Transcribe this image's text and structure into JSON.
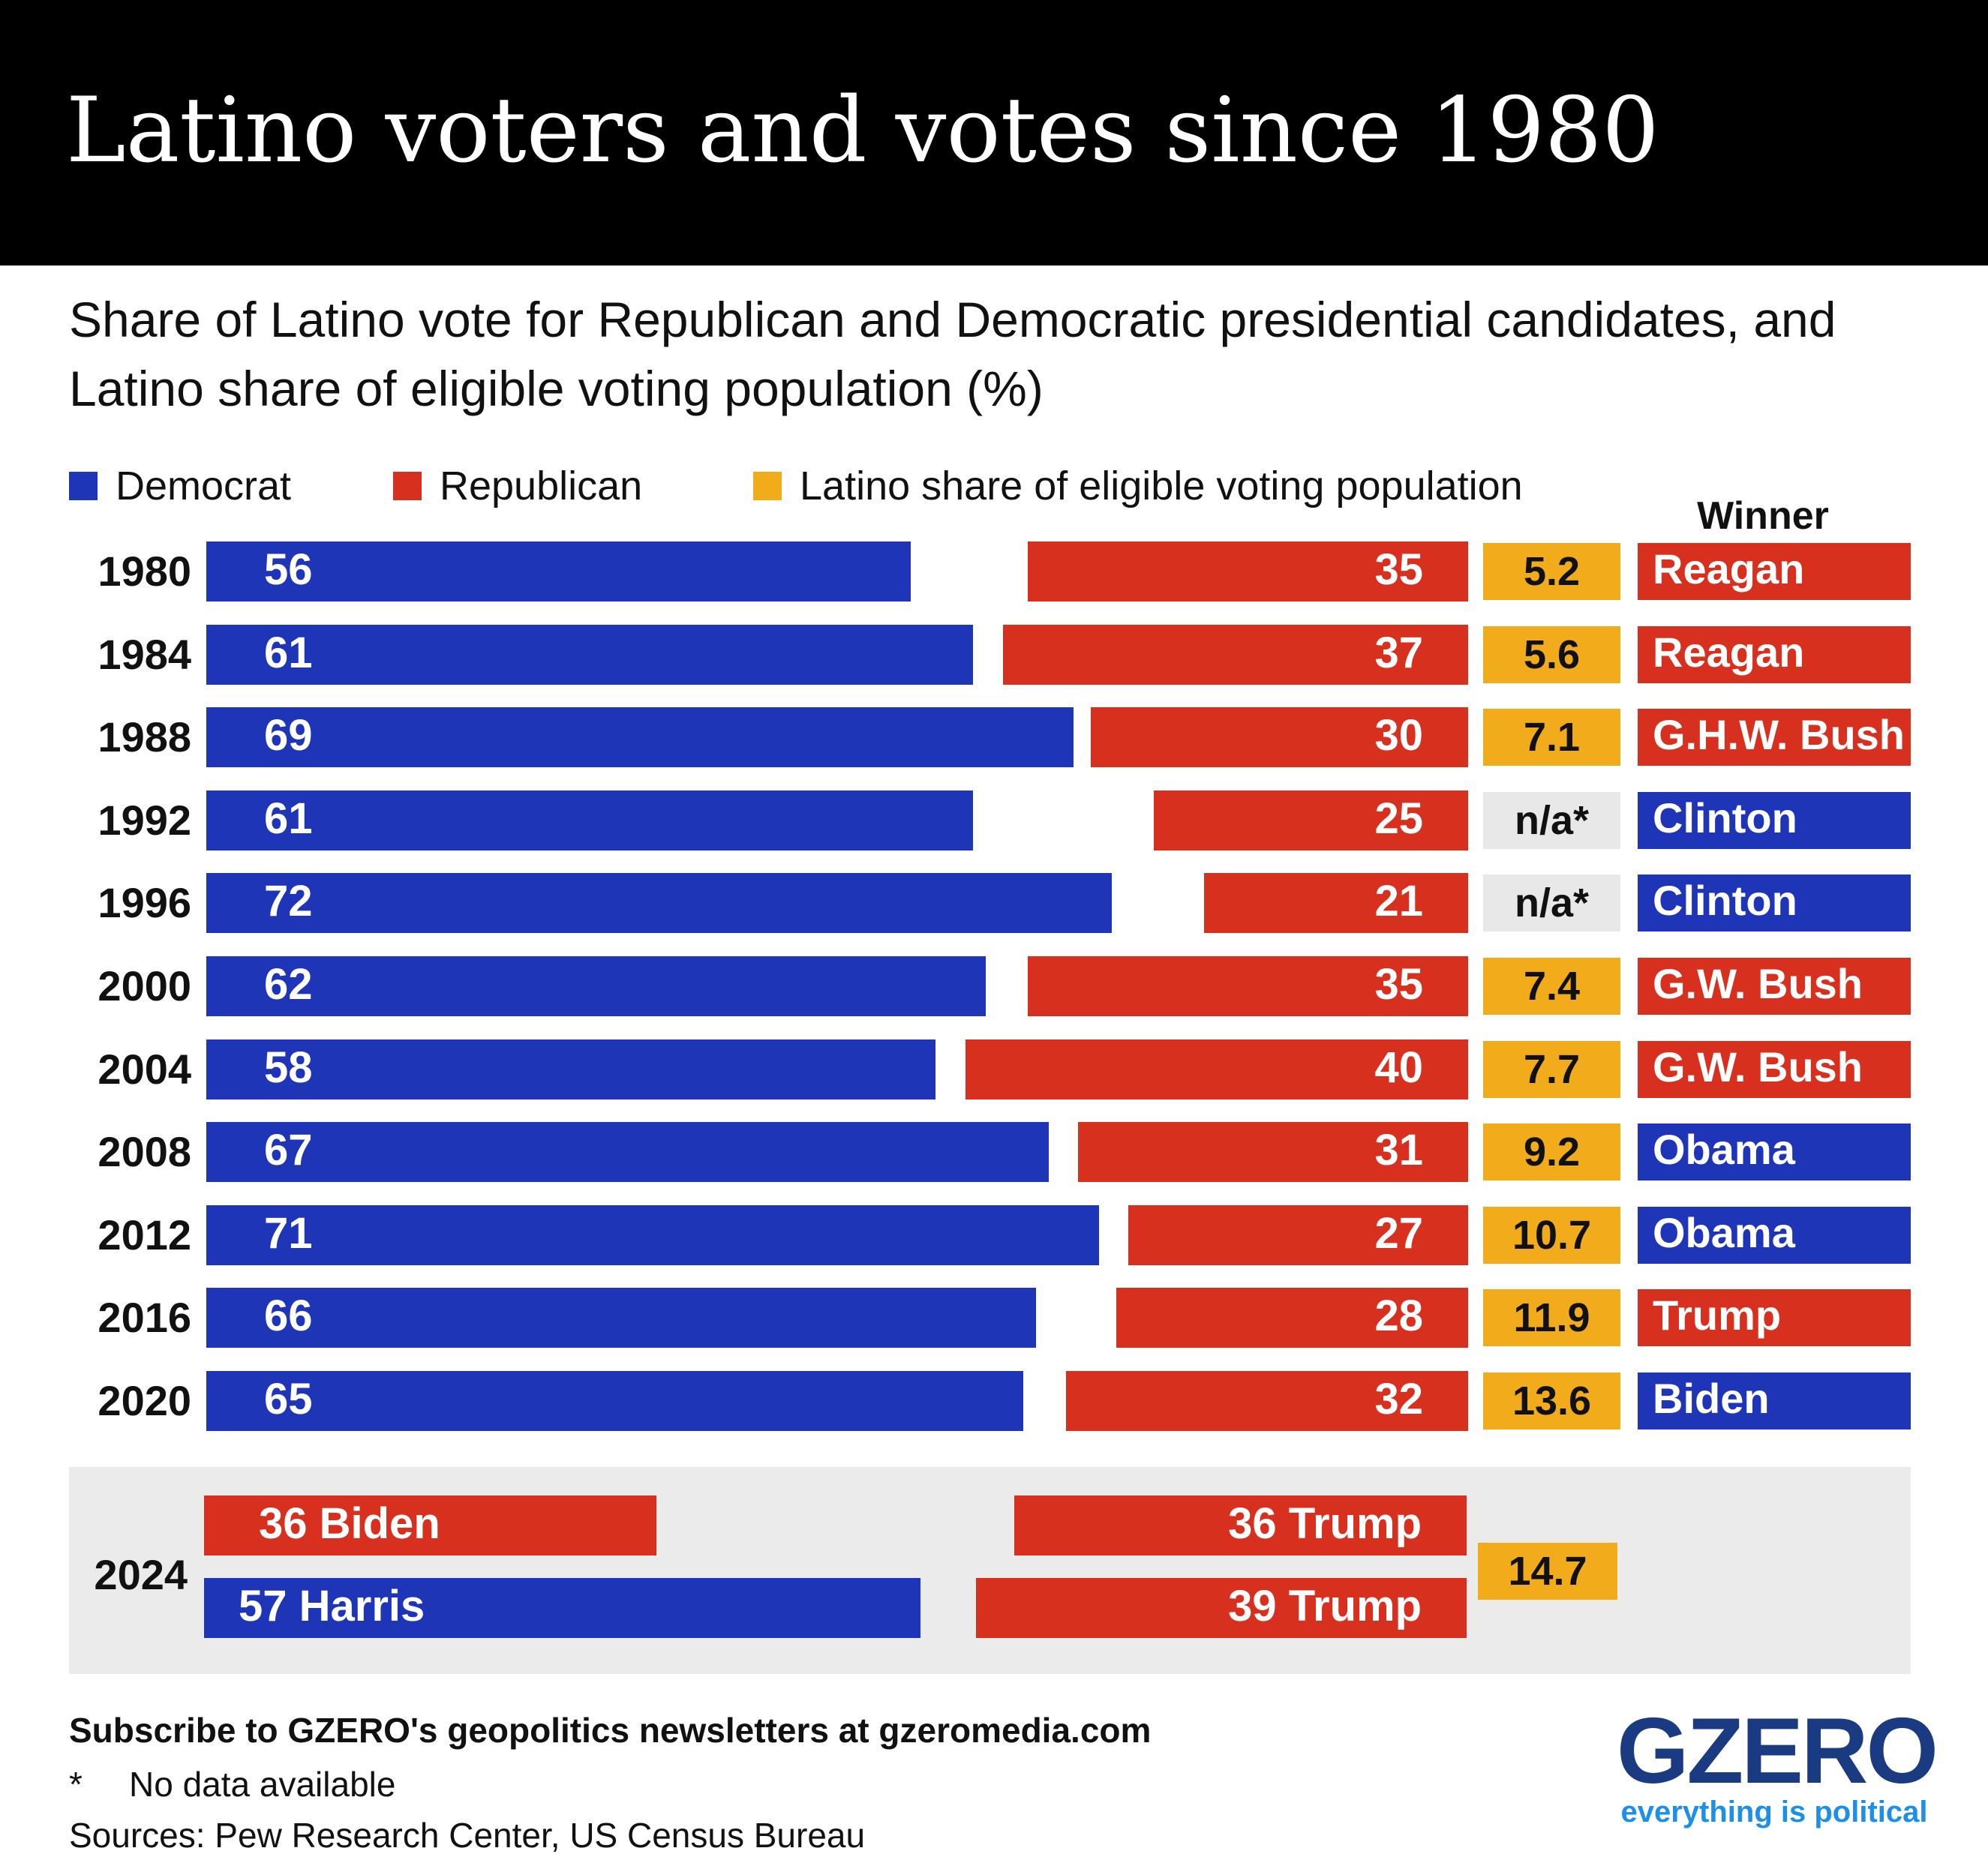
{
  "chart_data": {
    "type": "bar",
    "title": "Latino voters and votes since 1980",
    "subtitle": "Share of Latino vote for Republican and Democratic presidential candidates, and Latino share of eligible voting population (%)",
    "legend": [
      {
        "name": "Democrat",
        "color": "#1f35b8"
      },
      {
        "name": "Republican",
        "color": "#d7301e"
      },
      {
        "name": "Latino share of eligible voting population",
        "color": "#f2ac1b"
      }
    ],
    "winner_header": "Winner",
    "categories": [
      "1980",
      "1984",
      "1988",
      "1992",
      "1996",
      "2000",
      "2004",
      "2008",
      "2012",
      "2016",
      "2020"
    ],
    "series": [
      {
        "name": "Democrat",
        "values": [
          56,
          61,
          69,
          61,
          72,
          62,
          58,
          67,
          71,
          66,
          65
        ]
      },
      {
        "name": "Republican",
        "values": [
          35,
          37,
          30,
          25,
          21,
          35,
          40,
          31,
          27,
          28,
          32
        ]
      },
      {
        "name": "Latino share of eligible voting population",
        "values": [
          5.2,
          5.6,
          7.1,
          null,
          null,
          7.4,
          7.7,
          9.2,
          10.7,
          11.9,
          13.6
        ]
      }
    ],
    "share_labels": [
      "5.2",
      "5.6",
      "7.1",
      "n/a*",
      "n/a*",
      "7.4",
      "7.7",
      "9.2",
      "10.7",
      "11.9",
      "13.6"
    ],
    "winners": [
      {
        "name": "Reagan",
        "party": "Republican"
      },
      {
        "name": "Reagan",
        "party": "Republican"
      },
      {
        "name": "G.H.W. Bush",
        "party": "Republican"
      },
      {
        "name": "Clinton",
        "party": "Democrat"
      },
      {
        "name": "Clinton",
        "party": "Democrat"
      },
      {
        "name": "G.W. Bush",
        "party": "Republican"
      },
      {
        "name": "G.W. Bush",
        "party": "Republican"
      },
      {
        "name": "Obama",
        "party": "Democrat"
      },
      {
        "name": "Obama",
        "party": "Democrat"
      },
      {
        "name": "Trump",
        "party": "Republican"
      },
      {
        "name": "Biden",
        "party": "Democrat"
      }
    ],
    "year_2024": {
      "year": "2024",
      "share": "14.7",
      "matchups": [
        {
          "left": {
            "value": 36,
            "label": "36 Biden",
            "party": "Republican"
          },
          "right": {
            "value": 36,
            "label": "36 Trump",
            "party": "Republican"
          }
        },
        {
          "left": {
            "value": 57,
            "label": "57 Harris",
            "party": "Democrat"
          },
          "right": {
            "value": 39,
            "label": "39 Trump",
            "party": "Republican"
          }
        }
      ]
    },
    "xlim": [
      0,
      100
    ]
  },
  "colors": {
    "democrat": "#1f35b8",
    "republican": "#d7301e",
    "share": "#f2ac1b",
    "na": "#e8e8e8",
    "panel_2024": "#ebebeb"
  },
  "footer": {
    "cta": "Subscribe to GZERO's geopolitics newsletters at gzeromedia.com",
    "note_mark": "*",
    "note_text": "No data available",
    "sources": "Sources: Pew Research Center, US Census Bureau"
  },
  "logo": {
    "word": "GZERO",
    "tagline": "everything is political"
  }
}
